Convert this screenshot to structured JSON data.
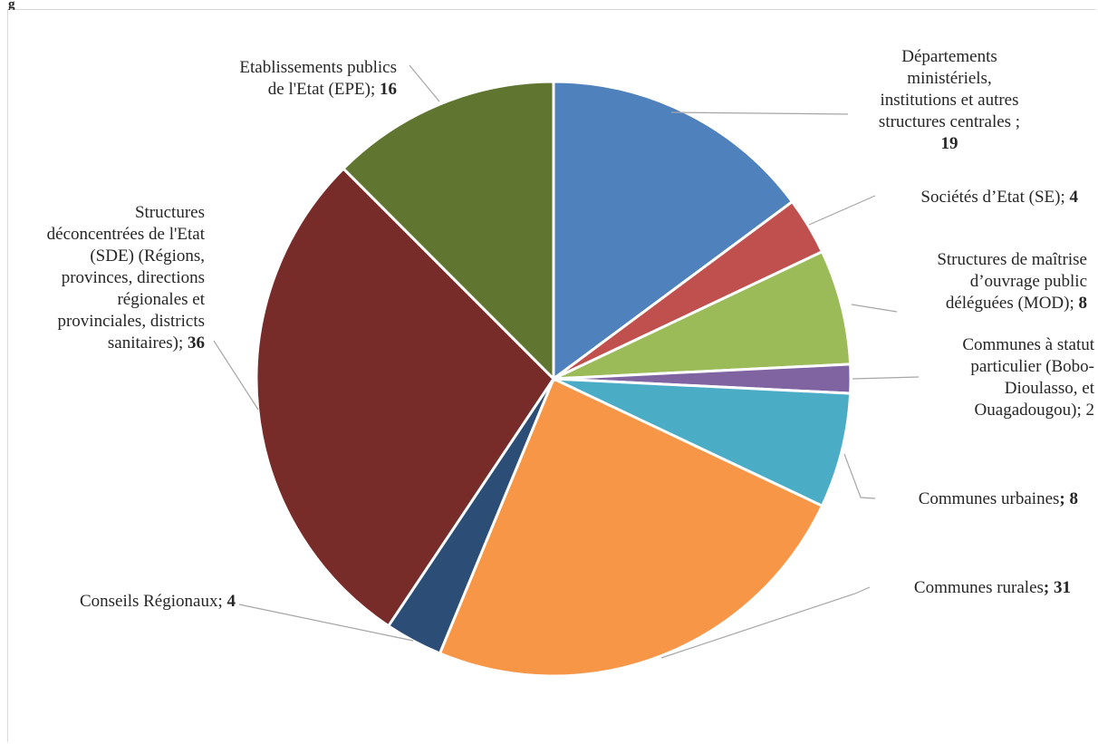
{
  "chart_data": {
    "type": "pie",
    "title": "",
    "slices": [
      {
        "label": "Départements ministériels, institutions et autres structures centrales ; 19",
        "category": "Départements ministériels, institutions et autres structures centrales",
        "value": 19,
        "color": "#4f81bd"
      },
      {
        "label": "Sociétés d’Etat (SE); 4",
        "category": "Sociétés d’Etat (SE)",
        "value": 4,
        "color": "#c0504d"
      },
      {
        "label": "Structures de maîtrise d’ouvrage public déléguées (MOD); 8",
        "category": "Structures de maîtrise d’ouvrage public déléguées (MOD)",
        "value": 8,
        "color": "#9bbb59"
      },
      {
        "label": "Communes à statut particulier (Bobo-Dioulasso, et Ouagadougou); 2",
        "category": "Communes à statut particulier (Bobo-Dioulasso, et Ouagadougou)",
        "value": 2,
        "color": "#8064a2"
      },
      {
        "label": "Communes urbaines; 8",
        "category": "Communes urbaines",
        "value": 8,
        "color": "#4bacc6"
      },
      {
        "label": "Communes rurales; 31",
        "category": "Communes rurales",
        "value": 31,
        "color": "#f79646"
      },
      {
        "label": "Conseils Régionaux; 4",
        "category": "Conseils Régionaux",
        "value": 4,
        "color": "#2c4d75"
      },
      {
        "label": "Structures déconcentrées de l'Etat (SDE) (Régions, provinces, directions régionales et provinciales, districts sanitaires); 36",
        "category": "Structures déconcentrées de l'Etat (SDE) (Régions, provinces, directions régionales et provinciales, districts sanitaires)",
        "value": 36,
        "color": "#772c2a"
      },
      {
        "label": "Etablissements publics de l'Etat (EPE); 16",
        "category": "Etablissements publics de l'Etat (EPE)",
        "value": 16,
        "color": "#5f7530"
      }
    ]
  }
}
